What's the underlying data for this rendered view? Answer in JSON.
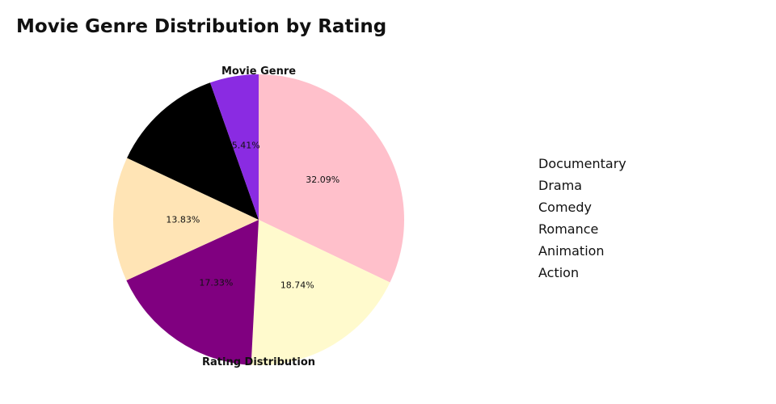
{
  "chart_data": {
    "type": "pie",
    "title": "Movie Genre Distribution by Rating",
    "top_label": "Movie Genre",
    "bottom_label": "Rating Distribution",
    "slices": [
      {
        "label": "Documentary",
        "value": 32.09,
        "display": "32.09%",
        "color": "#ffc0cb"
      },
      {
        "label": "Drama",
        "value": 18.74,
        "display": "18.74%",
        "color": "#fffacd"
      },
      {
        "label": "Comedy",
        "value": 17.33,
        "display": "17.33%",
        "color": "#800080"
      },
      {
        "label": "Romance",
        "value": 13.83,
        "display": "13.83%",
        "color": "#ffe4b5"
      },
      {
        "label": "Animation",
        "value": 12.6,
        "display": "",
        "color": "#000000"
      },
      {
        "label": "Action",
        "value": 5.41,
        "display": "5.41%",
        "color": "#8a2be2"
      }
    ],
    "legend": [
      "Documentary",
      "Drama",
      "Comedy",
      "Romance",
      "Animation",
      "Action"
    ],
    "legend_position": "right"
  }
}
